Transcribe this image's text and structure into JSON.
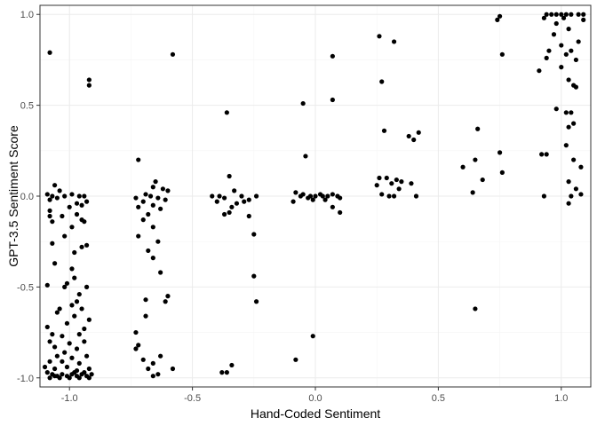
{
  "chart_data": {
    "type": "scatter",
    "title": "",
    "xlabel": "Hand-Coded Sentiment",
    "ylabel": "GPT-3.5 Sentiment Score",
    "xlim": [
      -1.12,
      1.12
    ],
    "ylim": [
      -1.05,
      1.05
    ],
    "x_ticks": [
      -1.0,
      -0.5,
      0.0,
      0.5,
      1.0
    ],
    "x_tick_labels": [
      "-1.0",
      "-0.5",
      "0.0",
      "0.5",
      "1.0"
    ],
    "y_ticks": [
      -1.0,
      -0.5,
      0.0,
      0.5,
      1.0
    ],
    "y_tick_labels": [
      "-1.0",
      "-0.5",
      "0.0",
      "0.5",
      "1.0"
    ],
    "grid": true,
    "point_color": "#000000",
    "points": [
      [
        -1.08,
        0.79
      ],
      [
        -0.92,
        0.64
      ],
      [
        -0.92,
        0.61
      ],
      [
        -1.06,
        0.06
      ],
      [
        -1.04,
        0.03
      ],
      [
        -1.09,
        0.01
      ],
      [
        -1.07,
        0.0
      ],
      [
        -1.05,
        -0.01
      ],
      [
        -1.02,
        0.0
      ],
      [
        -0.99,
        0.01
      ],
      [
        -0.96,
        0.0
      ],
      [
        -0.94,
        0.0
      ],
      [
        -1.08,
        -0.02
      ],
      [
        -0.97,
        -0.04
      ],
      [
        -0.93,
        -0.03
      ],
      [
        -1.08,
        -0.08
      ],
      [
        -1.0,
        -0.06
      ],
      [
        -0.95,
        -0.05
      ],
      [
        -1.08,
        -0.11
      ],
      [
        -1.03,
        -0.11
      ],
      [
        -0.97,
        -0.1
      ],
      [
        -1.07,
        -0.14
      ],
      [
        -0.95,
        -0.13
      ],
      [
        -0.94,
        -0.14
      ],
      [
        -0.99,
        -0.17
      ],
      [
        -1.02,
        -0.22
      ],
      [
        -1.07,
        -0.26
      ],
      [
        -0.95,
        -0.28
      ],
      [
        -0.93,
        -0.27
      ],
      [
        -0.98,
        -0.31
      ],
      [
        -1.06,
        -0.37
      ],
      [
        -0.99,
        -0.4
      ],
      [
        -0.98,
        -0.45
      ],
      [
        -1.01,
        -0.48
      ],
      [
        -1.09,
        -0.49
      ],
      [
        -1.02,
        -0.5
      ],
      [
        -0.93,
        -0.5
      ],
      [
        -0.96,
        -0.54
      ],
      [
        -0.97,
        -0.58
      ],
      [
        -0.99,
        -0.6
      ],
      [
        -1.04,
        -0.62
      ],
      [
        -0.95,
        -0.62
      ],
      [
        -1.05,
        -0.64
      ],
      [
        -0.98,
        -0.66
      ],
      [
        -1.01,
        -0.7
      ],
      [
        -0.92,
        -0.68
      ],
      [
        -1.09,
        -0.72
      ],
      [
        -0.94,
        -0.73
      ],
      [
        -1.07,
        -0.76
      ],
      [
        -1.03,
        -0.77
      ],
      [
        -0.96,
        -0.76
      ],
      [
        -1.08,
        -0.8
      ],
      [
        -1.0,
        -0.81
      ],
      [
        -0.94,
        -0.8
      ],
      [
        -1.06,
        -0.83
      ],
      [
        -0.97,
        -0.84
      ],
      [
        -1.02,
        -0.86
      ],
      [
        -1.05,
        -0.88
      ],
      [
        -0.99,
        -0.89
      ],
      [
        -0.93,
        -0.88
      ],
      [
        -1.08,
        -0.91
      ],
      [
        -1.03,
        -0.91
      ],
      [
        -0.96,
        -0.92
      ],
      [
        -1.1,
        -0.94
      ],
      [
        -1.06,
        -0.95
      ],
      [
        -1.01,
        -0.94
      ],
      [
        -0.97,
        -0.96
      ],
      [
        -0.92,
        -0.95
      ],
      [
        -1.09,
        -0.97
      ],
      [
        -1.07,
        -0.98
      ],
      [
        -1.05,
        -0.99
      ],
      [
        -1.03,
        -0.98
      ],
      [
        -1.01,
        -0.99
      ],
      [
        -0.99,
        -0.98
      ],
      [
        -0.97,
        -0.99
      ],
      [
        -0.95,
        -0.98
      ],
      [
        -0.93,
        -0.99
      ],
      [
        -0.91,
        -0.98
      ],
      [
        -1.08,
        -1.0
      ],
      [
        -1.04,
        -1.0
      ],
      [
        -1.0,
        -1.0
      ],
      [
        -0.96,
        -1.0
      ],
      [
        -0.92,
        -1.0
      ],
      [
        -1.06,
        -0.99
      ],
      [
        -0.98,
        -0.97
      ],
      [
        -0.94,
        -0.97
      ],
      [
        -0.72,
        0.2
      ],
      [
        -0.65,
        0.08
      ],
      [
        -0.66,
        0.05
      ],
      [
        -0.62,
        0.04
      ],
      [
        -0.6,
        0.03
      ],
      [
        -0.69,
        0.01
      ],
      [
        -0.67,
        0.0
      ],
      [
        -0.73,
        -0.01
      ],
      [
        -0.64,
        -0.01
      ],
      [
        -0.7,
        -0.03
      ],
      [
        -0.61,
        -0.02
      ],
      [
        -0.66,
        -0.05
      ],
      [
        -0.72,
        -0.06
      ],
      [
        -0.63,
        -0.07
      ],
      [
        -0.68,
        -0.1
      ],
      [
        -0.7,
        -0.13
      ],
      [
        -0.66,
        -0.17
      ],
      [
        -0.72,
        -0.22
      ],
      [
        -0.64,
        -0.25
      ],
      [
        -0.68,
        -0.3
      ],
      [
        -0.66,
        -0.34
      ],
      [
        -0.63,
        -0.42
      ],
      [
        -0.6,
        -0.55
      ],
      [
        -0.69,
        -0.57
      ],
      [
        -0.61,
        -0.58
      ],
      [
        -0.69,
        -0.66
      ],
      [
        -0.73,
        -0.75
      ],
      [
        -0.72,
        -0.82
      ],
      [
        -0.73,
        -0.84
      ],
      [
        -0.63,
        -0.88
      ],
      [
        -0.7,
        -0.9
      ],
      [
        -0.66,
        -0.92
      ],
      [
        -0.68,
        -0.95
      ],
      [
        -0.64,
        -0.98
      ],
      [
        -0.58,
        -0.95
      ],
      [
        -0.66,
        -0.99
      ],
      [
        -0.58,
        0.78
      ],
      [
        -0.36,
        0.46
      ],
      [
        -0.35,
        0.11
      ],
      [
        -0.33,
        0.03
      ],
      [
        -0.42,
        0.0
      ],
      [
        -0.39,
        0.0
      ],
      [
        -0.37,
        -0.01
      ],
      [
        -0.3,
        0.0
      ],
      [
        -0.27,
        -0.02
      ],
      [
        -0.24,
        0.0
      ],
      [
        -0.4,
        -0.03
      ],
      [
        -0.32,
        -0.04
      ],
      [
        -0.29,
        -0.03
      ],
      [
        -0.34,
        -0.06
      ],
      [
        -0.37,
        -0.1
      ],
      [
        -0.35,
        -0.09
      ],
      [
        -0.27,
        -0.11
      ],
      [
        -0.25,
        -0.21
      ],
      [
        -0.25,
        -0.44
      ],
      [
        -0.24,
        -0.58
      ],
      [
        -0.34,
        -0.93
      ],
      [
        -0.36,
        -0.97
      ],
      [
        -0.38,
        -0.97
      ],
      [
        -0.05,
        0.51
      ],
      [
        0.07,
        0.77
      ],
      [
        0.07,
        0.53
      ],
      [
        -0.04,
        0.22
      ],
      [
        -0.08,
        0.02
      ],
      [
        -0.06,
        0.0
      ],
      [
        -0.05,
        0.01
      ],
      [
        -0.03,
        -0.01
      ],
      [
        -0.02,
        0.0
      ],
      [
        0.0,
        0.0
      ],
      [
        0.02,
        0.01
      ],
      [
        0.03,
        0.0
      ],
      [
        0.05,
        0.0
      ],
      [
        0.07,
        0.01
      ],
      [
        0.09,
        0.0
      ],
      [
        0.1,
        -0.01
      ],
      [
        -0.09,
        -0.03
      ],
      [
        -0.01,
        -0.02
      ],
      [
        0.04,
        -0.02
      ],
      [
        0.07,
        -0.06
      ],
      [
        0.1,
        -0.09
      ],
      [
        -0.01,
        -0.77
      ],
      [
        -0.08,
        -0.9
      ],
      [
        0.26,
        0.88
      ],
      [
        0.32,
        0.85
      ],
      [
        0.27,
        0.63
      ],
      [
        0.28,
        0.36
      ],
      [
        0.38,
        0.33
      ],
      [
        0.42,
        0.35
      ],
      [
        0.4,
        0.31
      ],
      [
        0.26,
        0.1
      ],
      [
        0.29,
        0.1
      ],
      [
        0.33,
        0.09
      ],
      [
        0.31,
        0.07
      ],
      [
        0.35,
        0.08
      ],
      [
        0.39,
        0.07
      ],
      [
        0.25,
        0.06
      ],
      [
        0.34,
        0.04
      ],
      [
        0.27,
        0.01
      ],
      [
        0.3,
        0.0
      ],
      [
        0.32,
        0.0
      ],
      [
        0.41,
        0.0
      ],
      [
        0.75,
        0.99
      ],
      [
        0.74,
        0.97
      ],
      [
        0.76,
        0.78
      ],
      [
        0.66,
        0.37
      ],
      [
        0.75,
        0.24
      ],
      [
        0.6,
        0.16
      ],
      [
        0.65,
        0.2
      ],
      [
        0.76,
        0.13
      ],
      [
        0.68,
        0.09
      ],
      [
        0.64,
        0.02
      ],
      [
        0.65,
        -0.62
      ],
      [
        0.94,
        1.0
      ],
      [
        0.96,
        1.0
      ],
      [
        0.98,
        1.0
      ],
      [
        1.0,
        1.0
      ],
      [
        1.02,
        1.0
      ],
      [
        1.04,
        1.0
      ],
      [
        1.07,
        1.0
      ],
      [
        1.09,
        1.0
      ],
      [
        0.93,
        0.98
      ],
      [
        1.01,
        0.98
      ],
      [
        1.09,
        0.97
      ],
      [
        0.98,
        0.95
      ],
      [
        1.03,
        0.92
      ],
      [
        0.97,
        0.89
      ],
      [
        1.07,
        0.85
      ],
      [
        1.0,
        0.83
      ],
      [
        0.95,
        0.8
      ],
      [
        1.04,
        0.8
      ],
      [
        0.94,
        0.76
      ],
      [
        1.02,
        0.78
      ],
      [
        1.06,
        0.75
      ],
      [
        0.91,
        0.69
      ],
      [
        1.0,
        0.71
      ],
      [
        1.03,
        0.64
      ],
      [
        1.05,
        0.61
      ],
      [
        1.06,
        0.6
      ],
      [
        0.98,
        0.48
      ],
      [
        1.02,
        0.46
      ],
      [
        1.04,
        0.46
      ],
      [
        1.05,
        0.4
      ],
      [
        1.03,
        0.38
      ],
      [
        1.02,
        0.28
      ],
      [
        0.94,
        0.23
      ],
      [
        0.92,
        0.23
      ],
      [
        1.05,
        0.2
      ],
      [
        1.08,
        0.16
      ],
      [
        1.03,
        0.08
      ],
      [
        1.06,
        0.04
      ],
      [
        1.04,
        0.0
      ],
      [
        0.93,
        0.0
      ],
      [
        1.08,
        0.01
      ],
      [
        1.03,
        -0.04
      ]
    ]
  }
}
